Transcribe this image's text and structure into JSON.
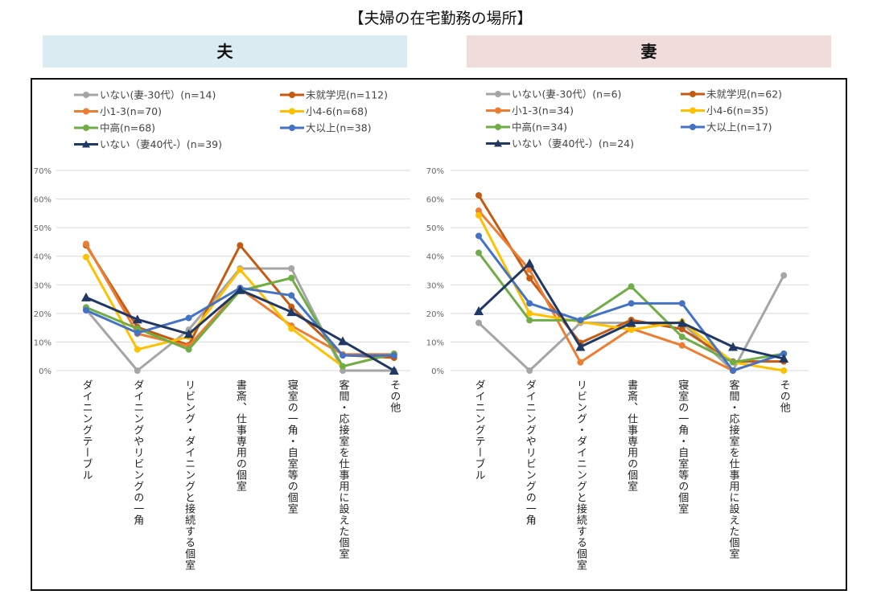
{
  "title": "【夫婦の在宅勤務の場所】",
  "headers": {
    "husband": "夫",
    "wife": "妻"
  },
  "chart_data": [
    {
      "type": "line",
      "panel": "husband",
      "title": "夫",
      "xlabel": "",
      "ylabel": "",
      "ylim": [
        0,
        0.7
      ],
      "yticks": [
        "0%",
        "10%",
        "20%",
        "30%",
        "40%",
        "50%",
        "60%",
        "70%"
      ],
      "grid": true,
      "legend_position": "top",
      "categories": [
        "ダイニングテーブル",
        "ダイニングやリビングの一角",
        "リビング・ダイニングと接続する個室",
        "書斎、仕事専用の個室",
        "寝室の一角・自室等の個室",
        "客間・応接室を仕事用に設えた個室",
        "その他"
      ],
      "series": [
        {
          "name": "いない(妻-30代）(n=14)",
          "color": "#a5a5a5",
          "marker": "circle",
          "values": [
            0.214,
            0.0,
            0.143,
            0.357,
            0.357,
            0.0,
            0.0
          ]
        },
        {
          "name": "未就学児(n=112)",
          "color": "#c55a11",
          "marker": "circle",
          "values": [
            0.438,
            0.152,
            0.089,
            0.438,
            0.223,
            0.054,
            0.045
          ]
        },
        {
          "name": "小1-3(n=70)",
          "color": "#ed7d31",
          "marker": "circle",
          "values": [
            0.443,
            0.129,
            0.086,
            0.286,
            0.157,
            0.057,
            0.057
          ]
        },
        {
          "name": "小4-6(n=68)",
          "color": "#ffc000",
          "marker": "circle",
          "values": [
            0.397,
            0.074,
            0.118,
            0.353,
            0.147,
            0.015,
            0.059
          ]
        },
        {
          "name": "中高(n=68)",
          "color": "#70ad47",
          "marker": "circle",
          "values": [
            0.221,
            0.147,
            0.074,
            0.279,
            0.324,
            0.015,
            0.059
          ]
        },
        {
          "name": "大以上(n=38)",
          "color": "#4472c4",
          "marker": "circle",
          "values": [
            0.211,
            0.132,
            0.184,
            0.289,
            0.263,
            0.053,
            0.053
          ]
        },
        {
          "name": "いない（妻40代-）(n=39)",
          "color": "#203864",
          "marker": "triangle",
          "values": [
            0.256,
            0.179,
            0.128,
            0.282,
            0.205,
            0.103,
            0.0
          ]
        }
      ]
    },
    {
      "type": "line",
      "panel": "wife",
      "title": "妻",
      "xlabel": "",
      "ylabel": "",
      "ylim": [
        0,
        0.7
      ],
      "yticks": [
        "0%",
        "10%",
        "20%",
        "30%",
        "40%",
        "50%",
        "60%",
        "70%"
      ],
      "grid": true,
      "legend_position": "top",
      "categories": [
        "ダイニングテーブル",
        "ダイニングやリビングの一角",
        "リビング・ダイニングと接続する個室",
        "書斎、仕事専用の個室",
        "寝室の一角・自室等の個室",
        "客間・応接室を仕事用に設えた個室",
        "その他"
      ],
      "series": [
        {
          "name": "いない(妻-30代）(n=6)",
          "color": "#a5a5a5",
          "marker": "circle",
          "values": [
            0.167,
            0.0,
            0.167,
            0.167,
            0.167,
            0.0,
            0.333
          ]
        },
        {
          "name": "未就学児(n=62)",
          "color": "#c55a11",
          "marker": "circle",
          "values": [
            0.613,
            0.323,
            0.097,
            0.177,
            0.145,
            0.032,
            0.032
          ]
        },
        {
          "name": "小1-3(n=34)",
          "color": "#ed7d31",
          "marker": "circle",
          "values": [
            0.559,
            0.353,
            0.029,
            0.147,
            0.088,
            0.0,
            0.059
          ]
        },
        {
          "name": "小4-6(n=35)",
          "color": "#ffc000",
          "marker": "circle",
          "values": [
            0.543,
            0.2,
            0.171,
            0.143,
            0.171,
            0.029,
            0.0
          ]
        },
        {
          "name": "中高(n=34)",
          "color": "#70ad47",
          "marker": "circle",
          "values": [
            0.412,
            0.176,
            0.176,
            0.294,
            0.118,
            0.029,
            0.059
          ]
        },
        {
          "name": "大以上(n=17)",
          "color": "#4472c4",
          "marker": "circle",
          "values": [
            0.471,
            0.235,
            0.176,
            0.235,
            0.235,
            0.0,
            0.059
          ]
        },
        {
          "name": "いない（妻40代-）(n=24)",
          "color": "#203864",
          "marker": "triangle",
          "values": [
            0.208,
            0.375,
            0.083,
            0.167,
            0.167,
            0.083,
            0.042
          ]
        }
      ]
    }
  ]
}
